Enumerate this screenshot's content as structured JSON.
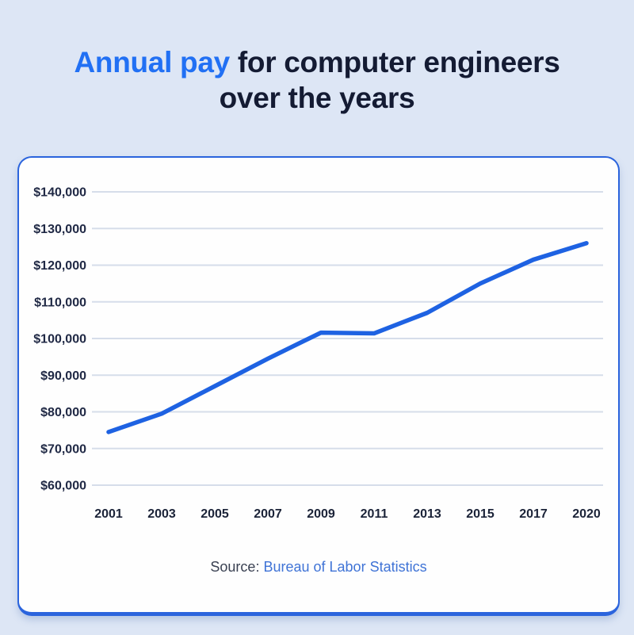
{
  "title": {
    "line1_highlight": "Annual pay",
    "line1_rest": " for computer engineers",
    "line2": "over the years"
  },
  "chart_data": {
    "type": "line",
    "title": "Annual pay for computer engineers over the years",
    "categories": [
      "2001",
      "2003",
      "2005",
      "2007",
      "2009",
      "2011",
      "2013",
      "2015",
      "2017",
      "2020"
    ],
    "series": [
      {
        "name": "Annual pay",
        "values": [
          74500,
          79500,
          87000,
          94500,
          101600,
          101400,
          107000,
          115000,
          121500,
          126000
        ]
      }
    ],
    "xlabel": "",
    "ylabel": "",
    "ylim": [
      60000,
      140000
    ],
    "ytick_step": 10000,
    "yticks": [
      "$140,000",
      "$130,000",
      "$120,000",
      "$110,000",
      "$100,000",
      "$90,000",
      "$80,000",
      "$70,000",
      "$60,000"
    ],
    "grid": "horizontal-only",
    "legend": "none",
    "line_color": "#1e62e2",
    "gridline_color": "#d6ddea",
    "tick_label_color": "#202945"
  },
  "source": {
    "label": "Source:",
    "link_text": "Bureau of Labor Statistics"
  },
  "colors": {
    "page_background": "#dde6f5",
    "card_background": "#fefefe",
    "card_border": "#2b64dd",
    "title_accent": "#2170f4",
    "title_text": "#141b33",
    "link_blue": "#3f73d6"
  }
}
